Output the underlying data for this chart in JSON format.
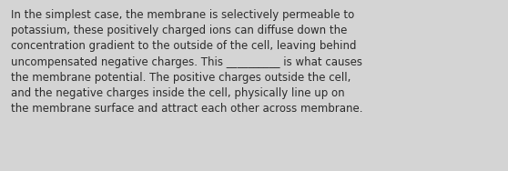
{
  "text": "In the simplest case, the membrane is selectively permeable to\npotassium, these positively charged ions can diffuse down the\nconcentration gradient to the outside of the cell, leaving behind\nuncompensated negative charges. This __________ is what causes\nthe membrane potential. The positive charges outside the cell,\nand the negative charges inside the cell, physically line up on\nthe membrane surface and attract each other across membrane.",
  "background_color": "#d4d4d4",
  "text_color": "#2a2a2a",
  "font_size": 8.5,
  "font_family": "DejaVu Sans",
  "fig_width": 5.58,
  "fig_height": 1.88,
  "dpi": 100
}
